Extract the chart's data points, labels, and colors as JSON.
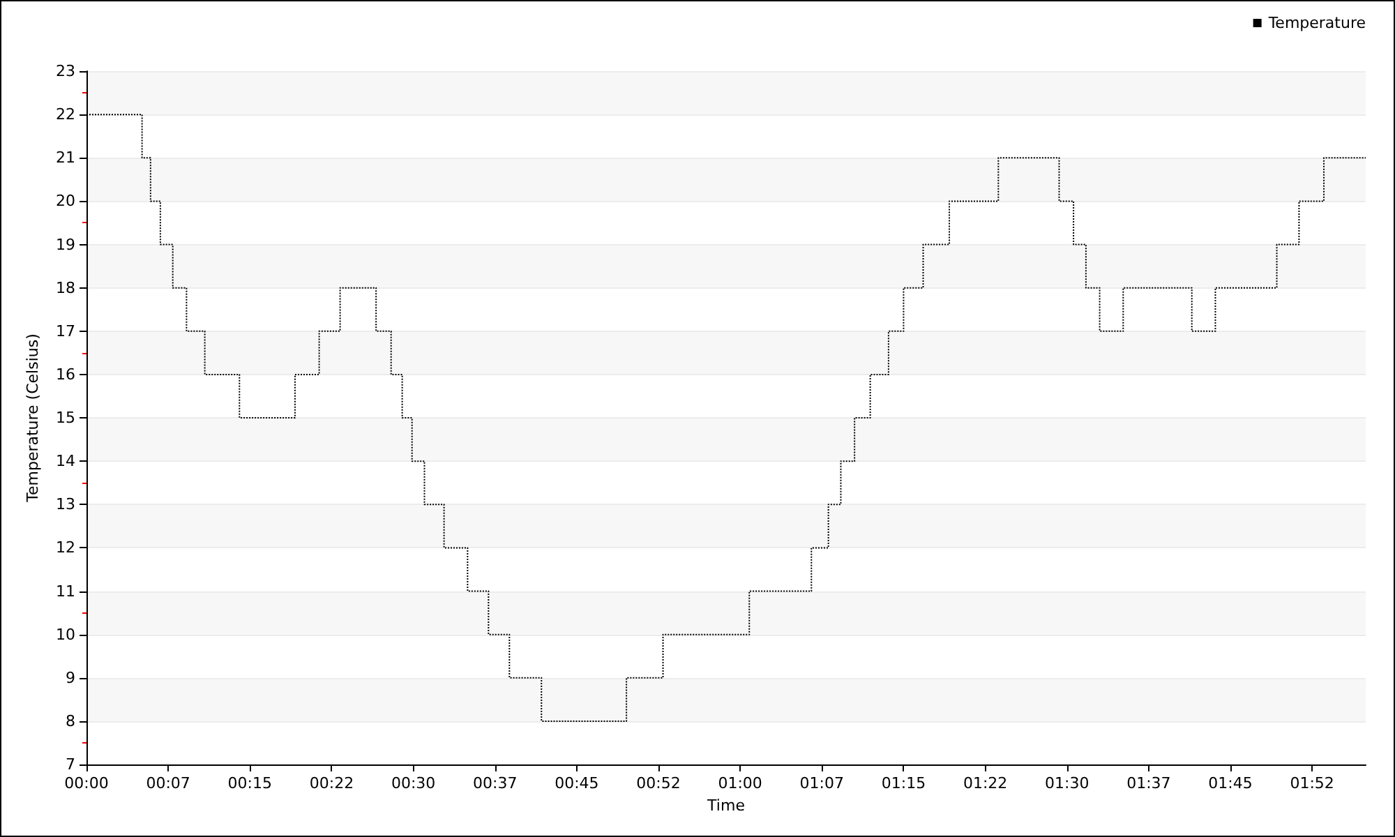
{
  "chart_data": {
    "type": "step",
    "xlabel": "Time",
    "ylabel": "Temperature (Celsius)",
    "x": [
      0,
      0.085,
      0.098,
      0.113,
      0.132,
      0.153,
      0.181,
      0.234,
      0.319,
      0.356,
      0.388,
      0.443,
      0.466,
      0.483,
      0.498,
      0.517,
      0.547,
      0.583,
      0.615,
      0.647,
      0.696,
      0.826,
      0.882,
      1.014,
      1.109,
      1.135,
      1.154,
      1.175,
      1.199,
      1.227,
      1.25,
      1.28,
      1.32,
      1.395,
      1.488,
      1.51,
      1.529,
      1.55,
      1.586,
      1.691,
      1.727,
      1.821,
      1.855,
      1.893,
      1.957
    ],
    "series": [
      {
        "name": "Temperature",
        "color": "#000000",
        "values": [
          22,
          21,
          20,
          19,
          18,
          17,
          16,
          15,
          16,
          17,
          18,
          17,
          16,
          15,
          14,
          13,
          12,
          11,
          10,
          9,
          8,
          9,
          10,
          11,
          12,
          13,
          14,
          15,
          16,
          17,
          18,
          19,
          20,
          21,
          20,
          19,
          18,
          17,
          18,
          17,
          18,
          19,
          20,
          21,
          21
        ]
      }
    ],
    "xlim": [
      0,
      1.957
    ],
    "xticks": [
      {
        "value": 0,
        "label": "00:00"
      },
      {
        "value": 0.125,
        "label": "00:07"
      },
      {
        "value": 0.25,
        "label": "00:15"
      },
      {
        "value": 0.375,
        "label": "00:22"
      },
      {
        "value": 0.5,
        "label": "00:30"
      },
      {
        "value": 0.625,
        "label": "00:37"
      },
      {
        "value": 0.75,
        "label": "00:45"
      },
      {
        "value": 0.875,
        "label": "00:52"
      },
      {
        "value": 1,
        "label": "01:00"
      },
      {
        "value": 1.125,
        "label": "01:07"
      },
      {
        "value": 1.25,
        "label": "01:15"
      },
      {
        "value": 1.375,
        "label": "01:22"
      },
      {
        "value": 1.5,
        "label": "01:30"
      },
      {
        "value": 1.625,
        "label": "01:37"
      },
      {
        "value": 1.75,
        "label": "01:45"
      },
      {
        "value": 1.875,
        "label": "01:52"
      }
    ],
    "ylim": [
      7,
      23
    ],
    "yticks": [
      7,
      8,
      9,
      10,
      11,
      12,
      13,
      14,
      15,
      16,
      17,
      18,
      19,
      20,
      21,
      22,
      23
    ],
    "grid": "y",
    "legend": "top right",
    "marker": "none",
    "line_style": "dotted"
  }
}
